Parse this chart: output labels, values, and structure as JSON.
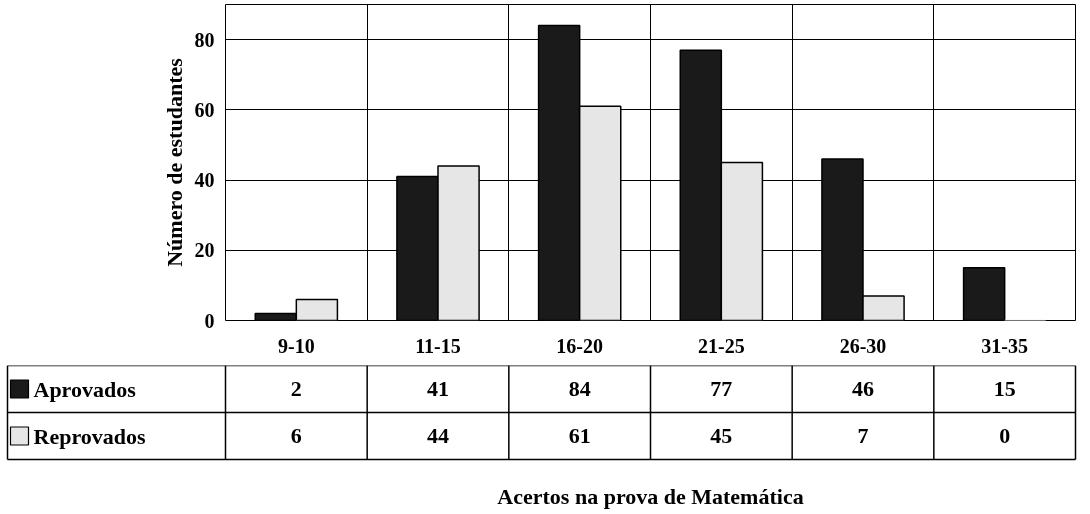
{
  "chart_data": {
    "type": "bar",
    "annotations": [
      "Acertos na prova de Matemática"
    ],
    "ylabel": "Número de estudantes",
    "categories": [
      "9-10",
      "11-15",
      "16-20",
      "21-25",
      "26-30",
      "31-35"
    ],
    "series": [
      {
        "name": "Aprovados",
        "color": "#1a1a1a",
        "values": [
          2,
          41,
          84,
          77,
          46,
          15
        ]
      },
      {
        "name": "Reprovados",
        "color": "#e6e6e6",
        "values": [
          6,
          44,
          61,
          45,
          7,
          0
        ]
      }
    ],
    "ylim": [
      0,
      90
    ],
    "yticks": [
      0,
      20,
      40,
      60,
      80
    ],
    "grid": true,
    "data_labels": true,
    "legend": "bottom left"
  }
}
